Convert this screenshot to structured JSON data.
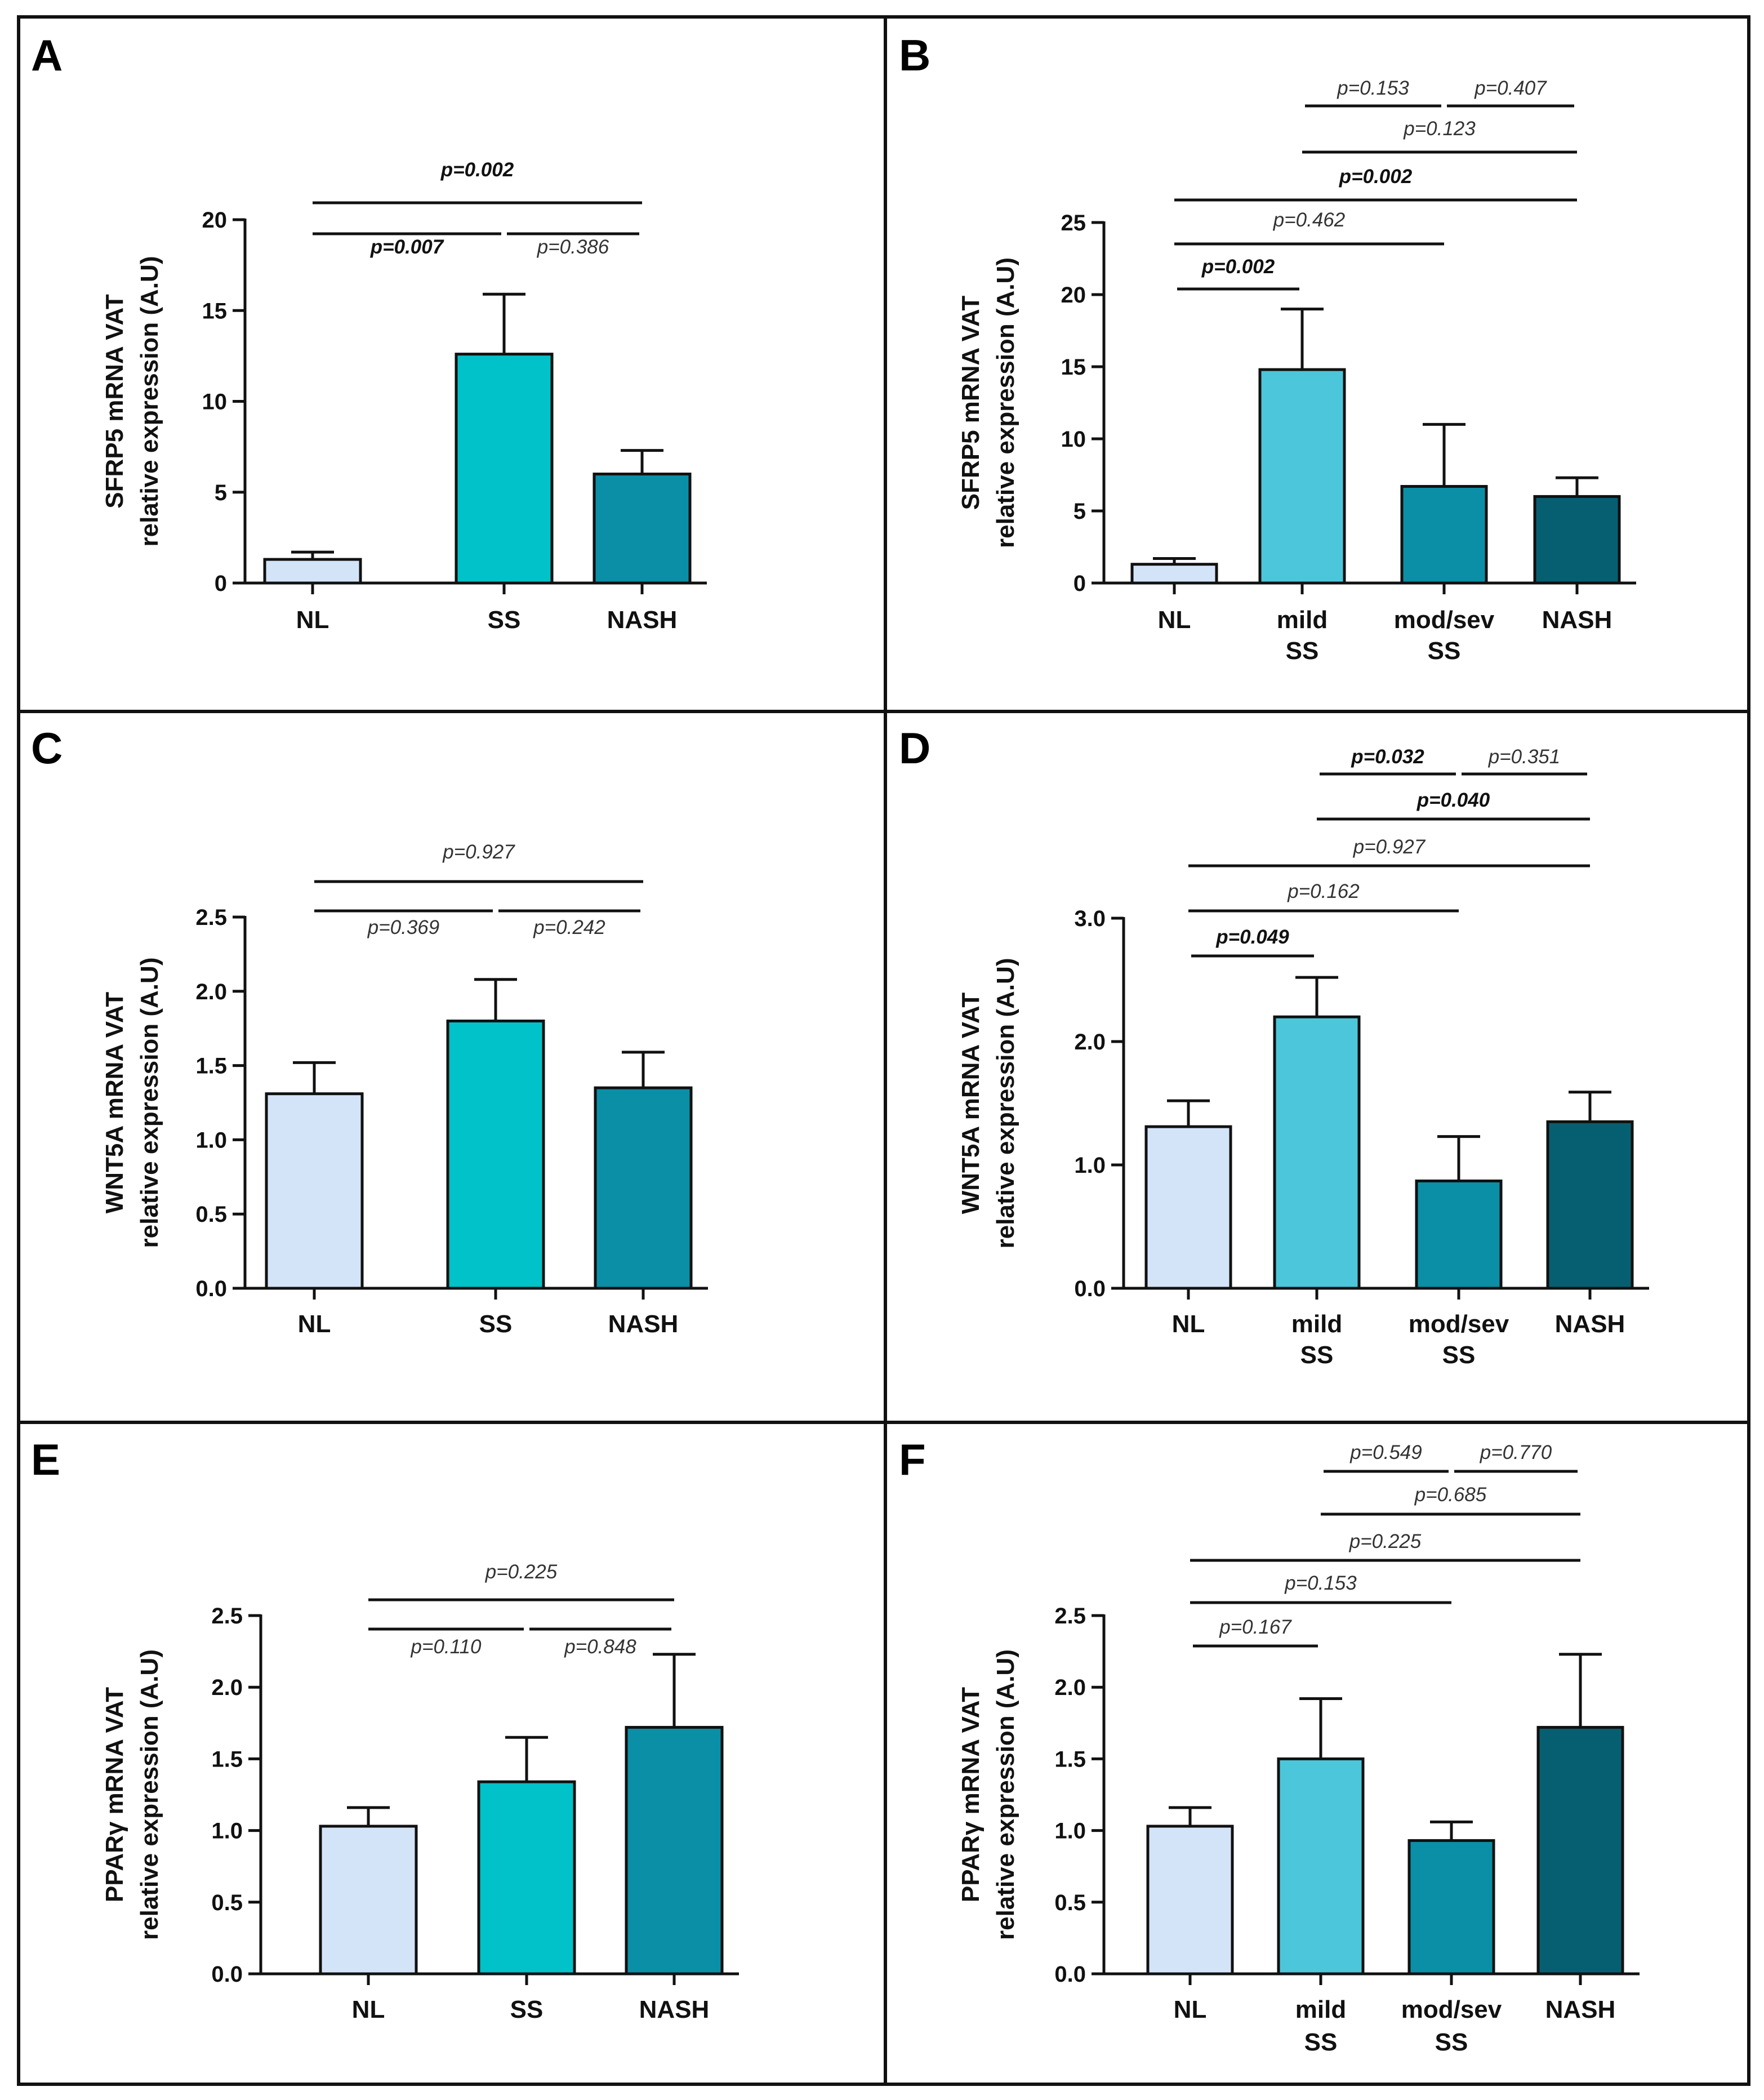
{
  "figure": {
    "colors": {
      "NL": "#d4e4f8",
      "SS": "#00c2c8",
      "mild SS": "#4cc6da",
      "mod/sev SS": "#0a8fa6",
      "NASH": "#065f70",
      "NASH3": "#0a8fa6",
      "border": "#111111"
    }
  },
  "chart_data": [
    {
      "type": "bar",
      "panel": "A",
      "ylabel_line1": "SFRP5 mRNA VAT",
      "ylabel_line2": "relative expression (A.U)",
      "categories": [
        "NL",
        "SS",
        "NASH"
      ],
      "values": [
        1.3,
        12.6,
        6.0
      ],
      "errors": [
        0.4,
        3.3,
        1.3
      ],
      "ylim": [
        0,
        20
      ],
      "yticks": [
        "0",
        "5",
        "10",
        "15",
        "20"
      ],
      "comparisons": [
        {
          "from": "NL",
          "to": "NASH",
          "label": "p=0.002",
          "bold": true
        },
        {
          "from": "NL",
          "to": "SS",
          "label": "p=0.007",
          "bold": true
        },
        {
          "from": "SS",
          "to": "NASH",
          "label": "p=0.386",
          "bold": false
        }
      ]
    },
    {
      "type": "bar",
      "panel": "B",
      "ylabel_line1": "SFRP5 mRNA VAT",
      "ylabel_line2": "relative expression (A.U)",
      "categories": [
        "NL",
        "mild SS",
        "mod/sev SS",
        "NASH"
      ],
      "values": [
        1.3,
        14.8,
        6.7,
        6.0
      ],
      "errors": [
        0.4,
        4.2,
        4.3,
        1.3
      ],
      "ylim": [
        0,
        25
      ],
      "yticks": [
        "0",
        "5",
        "10",
        "15",
        "20",
        "25"
      ],
      "comparisons": [
        {
          "from": "mild SS",
          "to": "mod/sev SS",
          "label": "p=0.153",
          "bold": false
        },
        {
          "from": "mod/sev SS",
          "to": "NASH",
          "label": "p=0.407",
          "bold": false
        },
        {
          "from": "mild SS",
          "to": "NASH",
          "label": "p=0.123",
          "bold": false
        },
        {
          "from": "NL",
          "to": "NASH",
          "label": "p=0.002",
          "bold": true
        },
        {
          "from": "NL",
          "to": "mod/sev SS",
          "label": "p=0.462",
          "bold": false
        },
        {
          "from": "NL",
          "to": "mild SS",
          "label": "p=0.002",
          "bold": true
        }
      ]
    },
    {
      "type": "bar",
      "panel": "C",
      "ylabel_line1": "WNT5A mRNA VAT",
      "ylabel_line2": "relative expression (A.U)",
      "categories": [
        "NL",
        "SS",
        "NASH"
      ],
      "values": [
        1.31,
        1.8,
        1.35
      ],
      "errors": [
        0.21,
        0.28,
        0.24
      ],
      "ylim": [
        0,
        2.5
      ],
      "yticks": [
        "0.0",
        "0.5",
        "1.0",
        "1.5",
        "2.0",
        "2.5"
      ],
      "comparisons": [
        {
          "from": "NL",
          "to": "NASH",
          "label": "p=0.927",
          "bold": false
        },
        {
          "from": "NL",
          "to": "SS",
          "label": "p=0.369",
          "bold": false
        },
        {
          "from": "SS",
          "to": "NASH",
          "label": "p=0.242",
          "bold": false
        }
      ]
    },
    {
      "type": "bar",
      "panel": "D",
      "ylabel_line1": "WNT5A mRNA VAT",
      "ylabel_line2": "relative expression (A.U)",
      "categories": [
        "NL",
        "mild SS",
        "mod/sev SS",
        "NASH"
      ],
      "values": [
        1.31,
        2.2,
        0.87,
        1.35
      ],
      "errors": [
        0.21,
        0.32,
        0.36,
        0.24
      ],
      "ylim": [
        0,
        3.0
      ],
      "yticks": [
        "0.0",
        "1.0",
        "2.0",
        "3.0"
      ],
      "comparisons": [
        {
          "from": "mild SS",
          "to": "mod/sev SS",
          "label": "p=0.032",
          "bold": true
        },
        {
          "from": "mod/sev SS",
          "to": "NASH",
          "label": "p=0.351",
          "bold": false
        },
        {
          "from": "mild SS",
          "to": "NASH",
          "label": "p=0.040",
          "bold": true
        },
        {
          "from": "NL",
          "to": "NASH",
          "label": "p=0.927",
          "bold": false
        },
        {
          "from": "NL",
          "to": "mod/sev SS",
          "label": "p=0.162",
          "bold": false
        },
        {
          "from": "NL",
          "to": "mild SS",
          "label": "p=0.049",
          "bold": true
        }
      ]
    },
    {
      "type": "bar",
      "panel": "E",
      "ylabel_line1": "PPARγ mRNA VAT",
      "ylabel_line2": "relative expression (A.U)",
      "categories": [
        "NL",
        "SS",
        "NASH"
      ],
      "values": [
        1.03,
        1.34,
        1.72
      ],
      "errors": [
        0.13,
        0.31,
        0.51
      ],
      "ylim": [
        0,
        2.5
      ],
      "yticks": [
        "0.0",
        "0.5",
        "1.0",
        "1.5",
        "2.0",
        "2.5"
      ],
      "comparisons": [
        {
          "from": "NL",
          "to": "NASH",
          "label": "p=0.225",
          "bold": false
        },
        {
          "from": "NL",
          "to": "SS",
          "label": "p=0.110",
          "bold": false
        },
        {
          "from": "SS",
          "to": "NASH",
          "label": "p=0.848",
          "bold": false
        }
      ]
    },
    {
      "type": "bar",
      "panel": "F",
      "ylabel_line1": "PPARγ mRNA VAT",
      "ylabel_line2": "relative expression (A.U)",
      "categories": [
        "NL",
        "mild SS",
        "mod/sev SS",
        "NASH"
      ],
      "values": [
        1.03,
        1.5,
        0.93,
        1.72
      ],
      "errors": [
        0.13,
        0.42,
        0.13,
        0.51
      ],
      "ylim": [
        0,
        2.5
      ],
      "yticks": [
        "0.0",
        "0.5",
        "1.0",
        "1.5",
        "2.0",
        "2.5"
      ],
      "comparisons": [
        {
          "from": "mild SS",
          "to": "mod/sev SS",
          "label": "p=0.549",
          "bold": false
        },
        {
          "from": "mod/sev SS",
          "to": "NASH",
          "label": "p=0.770",
          "bold": false
        },
        {
          "from": "mild SS",
          "to": "NASH",
          "label": "p=0.685",
          "bold": false
        },
        {
          "from": "NL",
          "to": "NASH",
          "label": "p=0.225",
          "bold": false
        },
        {
          "from": "NL",
          "to": "mod/sev SS",
          "label": "p=0.153",
          "bold": false
        },
        {
          "from": "NL",
          "to": "mild SS",
          "label": "p=0.167",
          "bold": false
        }
      ]
    }
  ]
}
